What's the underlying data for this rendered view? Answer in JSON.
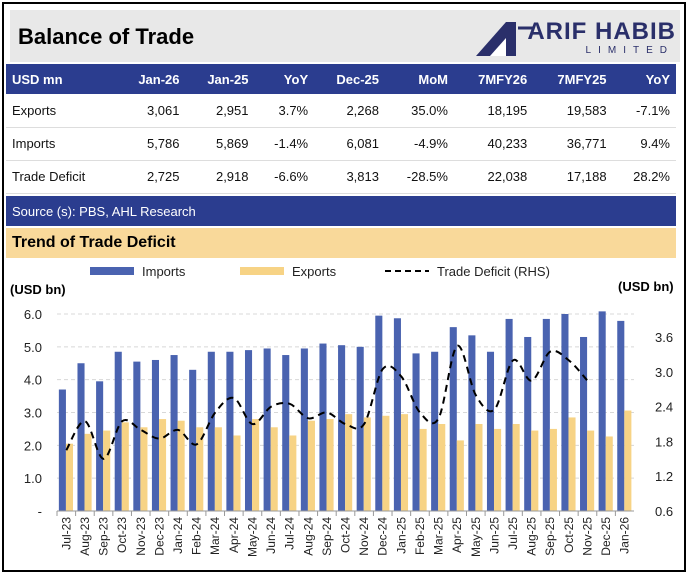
{
  "title": "Balance of Trade",
  "logo": {
    "name": "ARIF HABIB",
    "sub": "LIMITED"
  },
  "table": {
    "headers": [
      "USD mn",
      "Jan-26",
      "Jan-25",
      "YoY",
      "Dec-25",
      "MoM",
      "7MFY26",
      "7MFY25",
      "YoY"
    ],
    "rows": [
      [
        "Exports",
        "3,061",
        "2,951",
        "3.7%",
        "2,268",
        "35.0%",
        "18,195",
        "19,583",
        "-7.1%"
      ],
      [
        "Imports",
        "5,786",
        "5,869",
        "-1.4%",
        "6,081",
        "-4.9%",
        "40,233",
        "36,771",
        "9.4%"
      ],
      [
        "Trade Deficit",
        "2,725",
        "2,918",
        "-6.6%",
        "3,813",
        "-28.5%",
        "22,038",
        "17,188",
        "28.2%"
      ]
    ]
  },
  "source": "Source (s): PBS, AHL Research",
  "section_title": "Trend of Trade Deficit",
  "colors": {
    "imports": "#4a63b0",
    "exports": "#f7d385",
    "deficit": "#000000",
    "header": "#2b3d8f"
  },
  "chart_data": {
    "type": "bar+line",
    "left_axis_label": "(USD bn)",
    "right_axis_label": "(USD bn)",
    "left_ticks": [
      "-",
      "1.0",
      "2.0",
      "3.0",
      "4.0",
      "5.0",
      "6.0"
    ],
    "right_ticks": [
      "0.6",
      "1.2",
      "1.8",
      "2.4",
      "3.0",
      "3.6"
    ],
    "ylim_left": [
      0,
      6
    ],
    "ylim_right": [
      0.6,
      4.0
    ],
    "legend_position": "top",
    "grid": true,
    "categories": [
      "Jul-23",
      "Aug-23",
      "Sep-23",
      "Oct-23",
      "Nov-23",
      "Dec-23",
      "Jan-24",
      "Feb-24",
      "Mar-24",
      "Apr-24",
      "May-24",
      "Jun-24",
      "Jul-24",
      "Aug-24",
      "Sep-24",
      "Oct-24",
      "Nov-24",
      "Dec-24",
      "Jan-25",
      "Feb-25",
      "Mar-25",
      "Apr-25",
      "May-25",
      "Jun-25",
      "Jul-25",
      "Aug-25",
      "Sep-25",
      "Oct-25",
      "Nov-25",
      "Dec-25",
      "Jan-26"
    ],
    "series": [
      {
        "name": "Imports",
        "type": "bar",
        "axis": "left",
        "values": [
          3.7,
          4.5,
          3.95,
          4.85,
          4.55,
          4.6,
          4.75,
          4.3,
          4.85,
          4.85,
          4.9,
          4.95,
          4.75,
          4.95,
          5.1,
          5.05,
          5.0,
          5.95,
          5.87,
          4.8,
          4.85,
          5.6,
          5.35,
          4.85,
          5.85,
          5.3,
          5.85,
          6.0,
          5.3,
          6.08,
          5.79
        ]
      },
      {
        "name": "Exports",
        "type": "bar",
        "axis": "left",
        "values": [
          2.05,
          2.35,
          2.45,
          2.7,
          2.55,
          2.8,
          2.75,
          2.55,
          2.55,
          2.3,
          2.8,
          2.55,
          2.3,
          2.75,
          2.8,
          2.95,
          2.85,
          2.9,
          2.95,
          2.5,
          2.65,
          2.15,
          2.65,
          2.5,
          2.65,
          2.45,
          2.5,
          2.85,
          2.45,
          2.27,
          3.06
        ]
      },
      {
        "name": "Trade Deficit (RHS)",
        "type": "line",
        "axis": "right",
        "values": [
          1.65,
          2.15,
          1.5,
          2.15,
          2.0,
          1.85,
          2.0,
          1.75,
          2.3,
          2.55,
          2.1,
          2.4,
          2.45,
          2.2,
          2.3,
          2.1,
          2.1,
          3.05,
          2.92,
          2.3,
          2.2,
          3.45,
          2.6,
          2.35,
          3.2,
          2.85,
          3.35,
          3.2,
          2.85,
          null,
          null
        ]
      }
    ]
  }
}
